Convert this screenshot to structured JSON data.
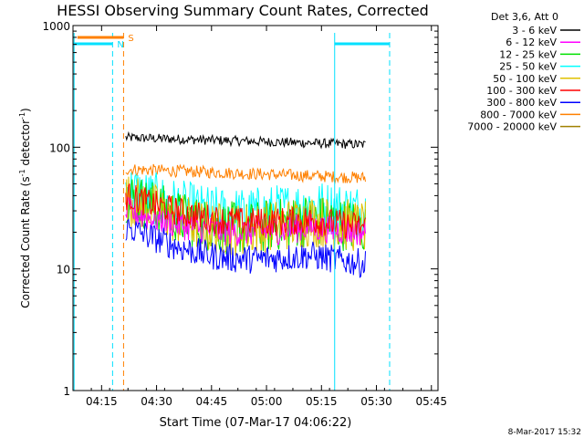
{
  "footer_timestamp": "8-Mar-2017 15:32",
  "chart_data": {
    "type": "line",
    "title": "HESSI Observing Summary Count Rates, Corrected",
    "xlabel": "Start Time (07-Mar-17 04:06:22)",
    "ylabel_parts": [
      "Corrected Count Rate (s",
      "-1",
      " detector",
      "-1",
      ")"
    ],
    "y_scale": "log",
    "ylim": [
      1,
      1000
    ],
    "xlim_minutes": [
      4.12,
      5.78
    ],
    "x_ticks": [
      {
        "label": "04:15",
        "t": 4.25
      },
      {
        "label": "04:30",
        "t": 4.5
      },
      {
        "label": "04:45",
        "t": 4.75
      },
      {
        "label": "05:00",
        "t": 5.0
      },
      {
        "label": "05:15",
        "t": 5.25
      },
      {
        "label": "05:30",
        "t": 5.5
      },
      {
        "label": "05:45",
        "t": 5.75
      }
    ],
    "y_ticks": [
      {
        "label": "1",
        "v": 1
      },
      {
        "label": "10",
        "v": 10
      },
      {
        "label": "100",
        "v": 100
      },
      {
        "label": "1000",
        "v": 1000
      }
    ],
    "legend": {
      "header": "Det 3,6, Att 0",
      "placement": "right",
      "entries": [
        {
          "label": "3 - 6 keV",
          "color": "#000000"
        },
        {
          "label": "6 - 12 keV",
          "color": "#ff00ff"
        },
        {
          "label": "12 - 25 keV",
          "color": "#00e000"
        },
        {
          "label": "25 - 50 keV",
          "color": "#00ffff"
        },
        {
          "label": "50 - 100 keV",
          "color": "#e0c000"
        },
        {
          "label": "100 - 300 keV",
          "color": "#ff0000"
        },
        {
          "label": "300 - 800 keV",
          "color": "#0000ff"
        },
        {
          "label": "800 - 7000 keV",
          "color": "#ff8000"
        },
        {
          "label": "7000 - 20000 keV",
          "color": "#a08000"
        }
      ]
    },
    "flags": [
      {
        "label": "N",
        "color": "#00e0ff",
        "intervals": [
          [
            4.12,
            4.3
          ],
          [
            5.31,
            5.56
          ]
        ]
      },
      {
        "label": "S",
        "color": "#ff8000",
        "intervals": [
          [
            4.14,
            4.35
          ]
        ]
      }
    ],
    "vlines": [
      {
        "t": 4.125,
        "color": "#00e0ff",
        "style": "solid"
      },
      {
        "t": 4.3,
        "color": "#00e0ff",
        "style": "dashed"
      },
      {
        "t": 4.35,
        "color": "#ff8000",
        "style": "dashed"
      },
      {
        "t": 5.31,
        "color": "#00e0ff",
        "style": "solid"
      },
      {
        "t": 5.56,
        "color": "#00e0ff",
        "style": "dashed"
      }
    ],
    "data_interval": [
      4.36,
      5.45
    ],
    "series": [
      {
        "name": "3 - 6 keV",
        "color": "#000000",
        "start": 120,
        "end": 105,
        "noise": 0.04,
        "dip": 0
      },
      {
        "name": "800 - 7000 keV",
        "color": "#ff8000",
        "start": 66,
        "end": 56,
        "noise": 0.05,
        "dip": 0
      },
      {
        "name": "25 - 50 keV",
        "color": "#00ffff",
        "start": 45,
        "end": 30,
        "noise": 0.22,
        "dip": 0.25
      },
      {
        "name": "12 - 25 keV",
        "color": "#00e000",
        "start": 40,
        "end": 22,
        "noise": 0.22,
        "dip": 0.3
      },
      {
        "name": "50 - 100 keV",
        "color": "#e0c000",
        "start": 38,
        "end": 22,
        "noise": 0.22,
        "dip": 0.3
      },
      {
        "name": "6 - 12 keV",
        "color": "#ff00ff",
        "start": 30,
        "end": 20,
        "noise": 0.12,
        "dip": 0.2
      },
      {
        "name": "100 - 300 keV",
        "color": "#ff0000",
        "start": 40,
        "end": 22,
        "noise": 0.12,
        "dip": 0.2
      },
      {
        "name": "300 - 800 keV",
        "color": "#0000ff",
        "start": 22,
        "end": 11,
        "noise": 0.12,
        "dip": 0.25
      }
    ]
  }
}
